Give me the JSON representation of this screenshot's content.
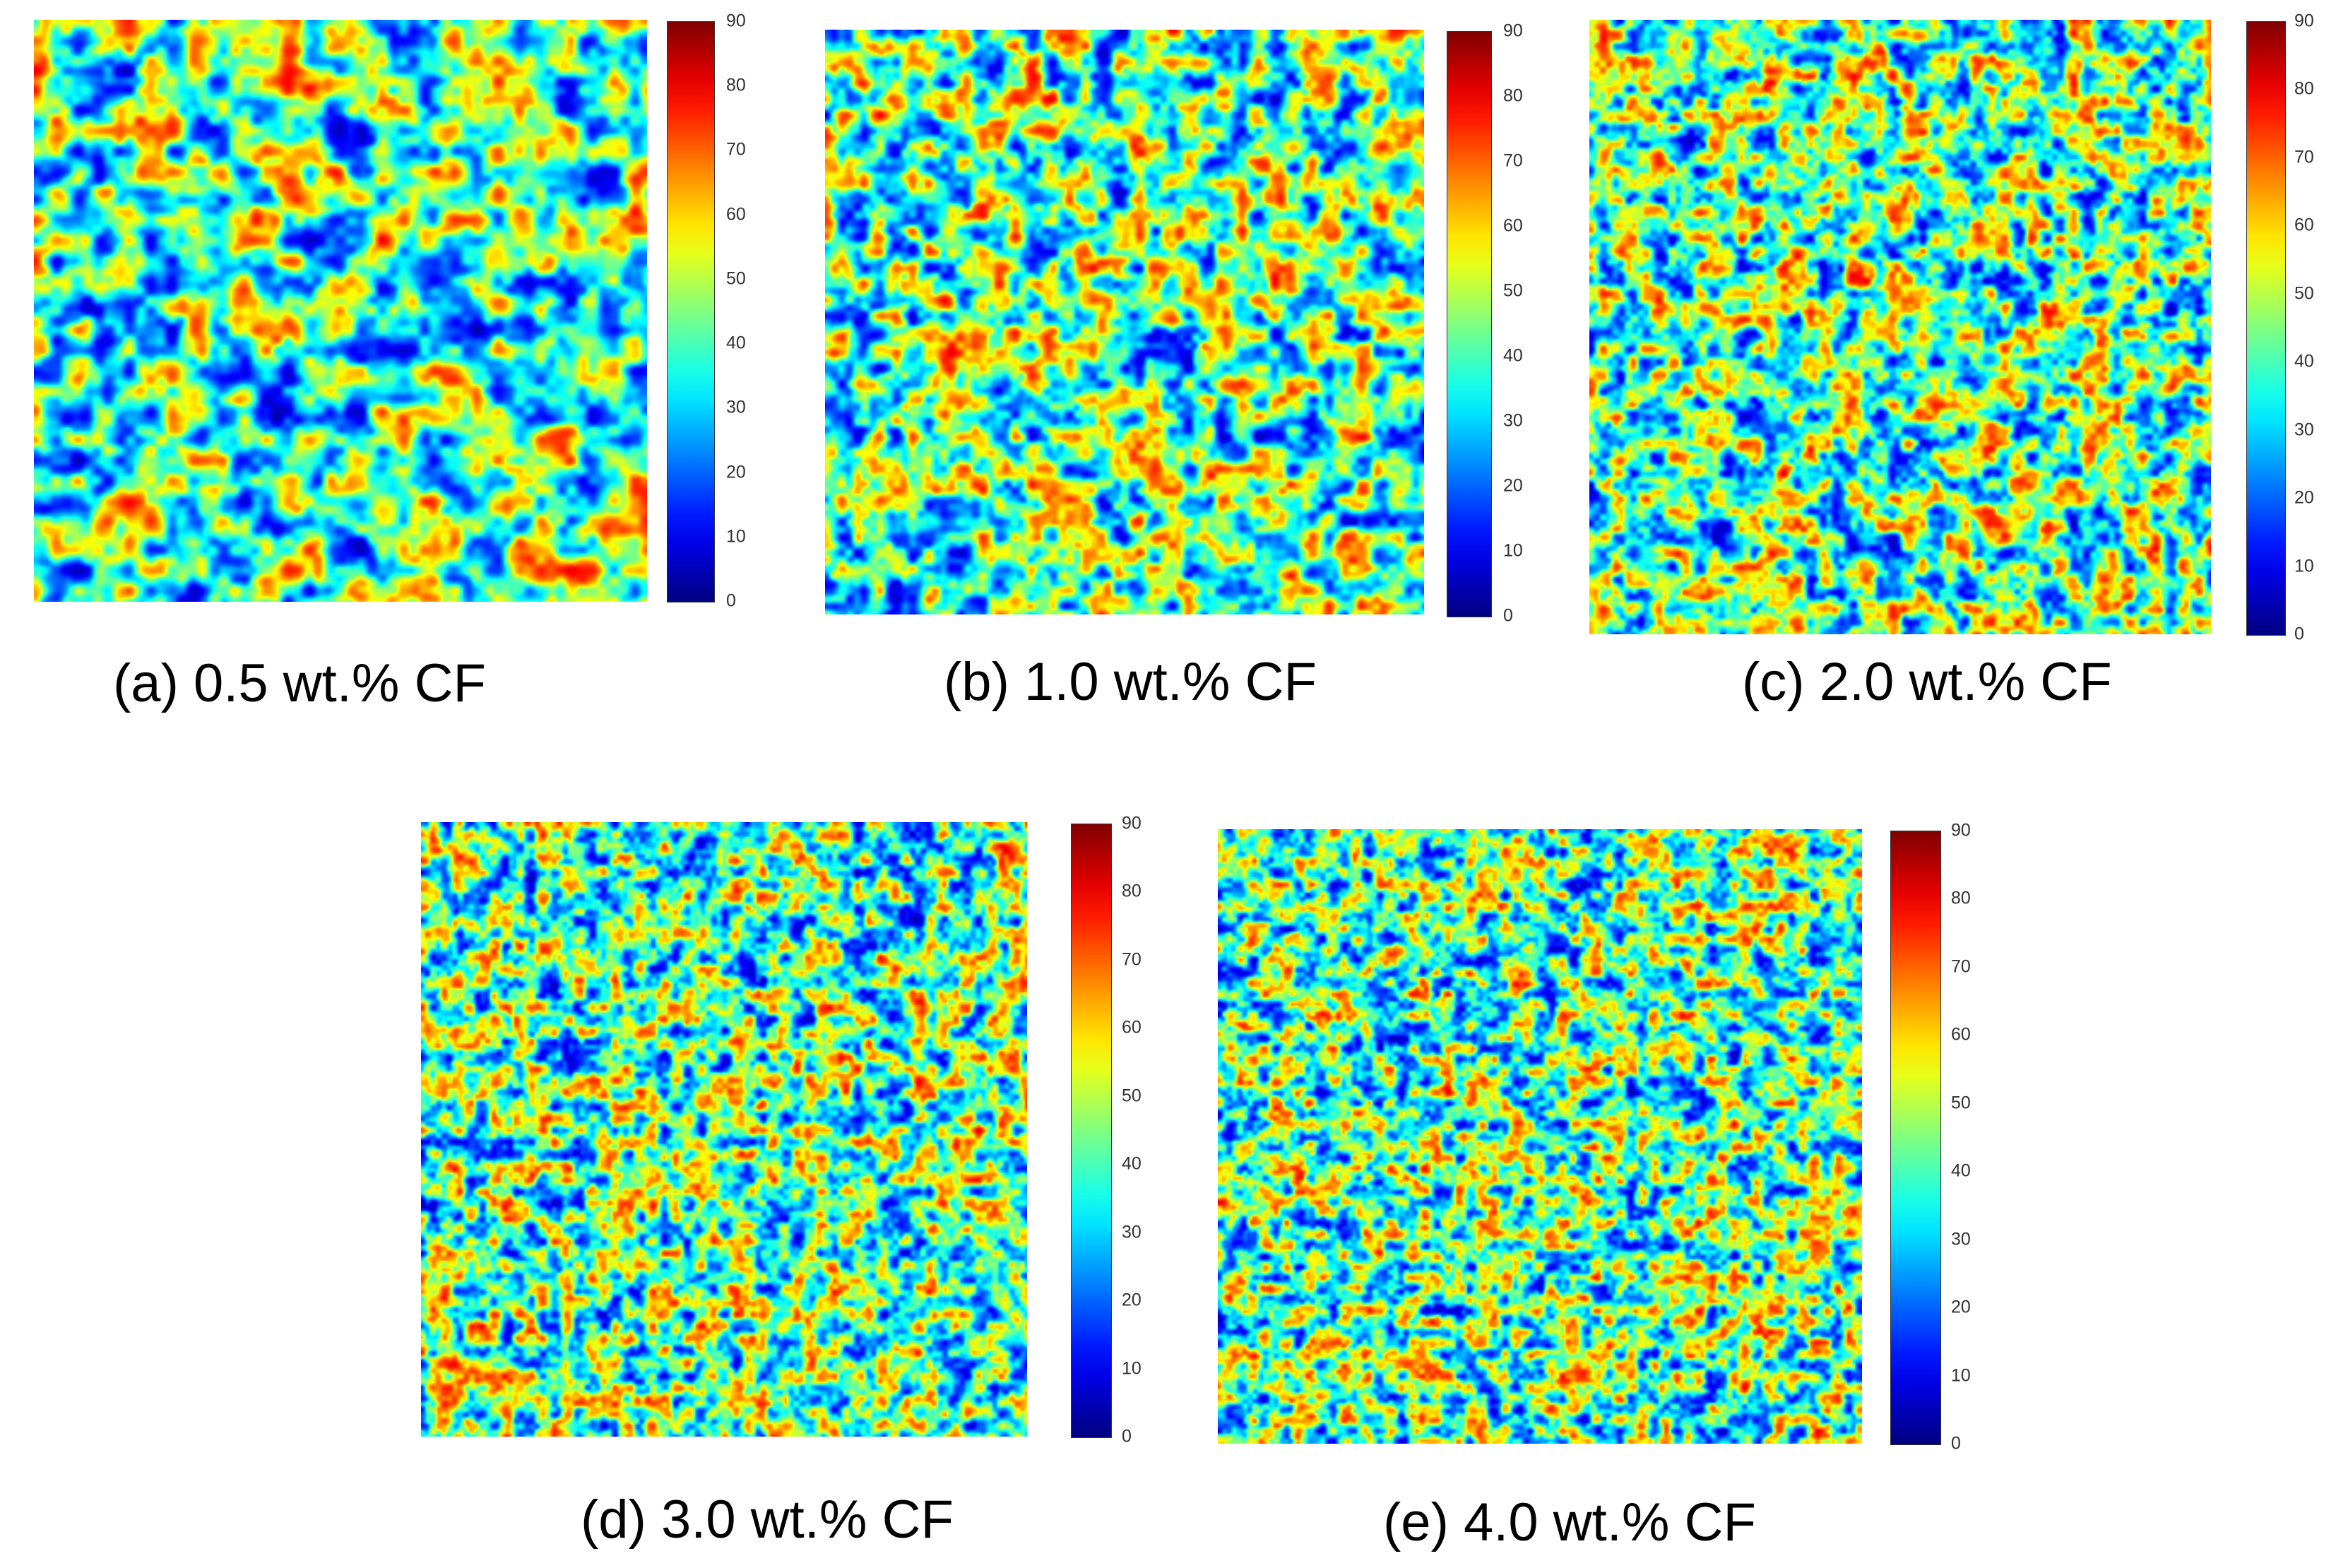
{
  "chart_data": [
    {
      "type": "heatmap",
      "caption": "(a) 0.5 wt.% CF",
      "colorscale": "jet",
      "zlim": [
        0,
        90
      ],
      "colorbar_ticks": [
        0,
        10,
        20,
        30,
        40,
        50,
        60,
        70,
        80,
        90
      ]
    },
    {
      "type": "heatmap",
      "caption": "(b) 1.0 wt.% CF",
      "colorscale": "jet",
      "zlim": [
        0,
        90
      ],
      "colorbar_ticks": [
        0,
        10,
        20,
        30,
        40,
        50,
        60,
        70,
        80,
        90
      ]
    },
    {
      "type": "heatmap",
      "caption": "(c) 2.0 wt.% CF",
      "colorscale": "jet",
      "zlim": [
        0,
        90
      ],
      "colorbar_ticks": [
        0,
        10,
        20,
        30,
        40,
        50,
        60,
        70,
        80,
        90
      ]
    },
    {
      "type": "heatmap",
      "caption": "(d) 3.0 wt.% CF",
      "colorscale": "jet",
      "zlim": [
        0,
        90
      ],
      "colorbar_ticks": [
        0,
        10,
        20,
        30,
        40,
        50,
        60,
        70,
        80,
        90
      ]
    },
    {
      "type": "heatmap",
      "caption": "(e) 4.0 wt.% CF",
      "colorscale": "jet",
      "zlim": [
        0,
        90
      ],
      "colorbar_ticks": [
        0,
        10,
        20,
        30,
        40,
        50,
        60,
        70,
        80,
        90
      ]
    }
  ]
}
